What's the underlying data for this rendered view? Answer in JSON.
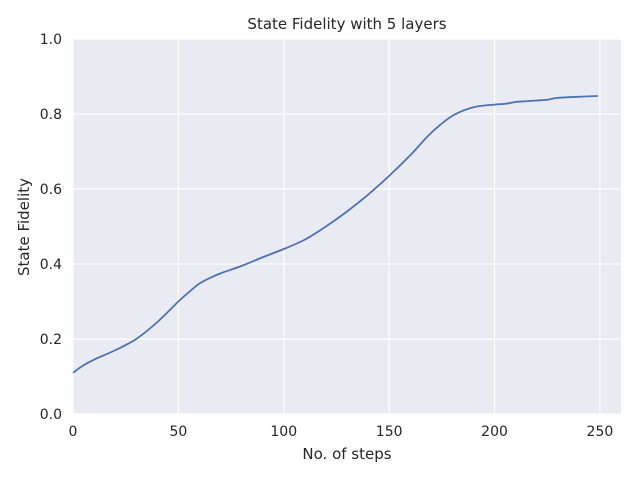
{
  "chart_data": {
    "type": "line",
    "title": "State Fidelity with 5 layers",
    "xlabel": "No. of steps",
    "ylabel": "State Fidelity",
    "xlim": [
      0,
      260
    ],
    "ylim": [
      0.0,
      1.0
    ],
    "xticks": [
      0,
      50,
      100,
      150,
      200,
      250
    ],
    "xtick_labels": [
      "0",
      "50",
      "100",
      "150",
      "200",
      "250"
    ],
    "yticks": [
      0.0,
      0.2,
      0.4,
      0.6,
      0.8,
      1.0
    ],
    "ytick_labels": [
      "0.0",
      "0.2",
      "0.4",
      "0.6",
      "0.8",
      "1.0"
    ],
    "grid": true,
    "background": "#eaeaf2",
    "line_color": "#4c72b0",
    "series": [
      {
        "x": [
          0,
          5,
          10,
          20,
          30,
          40,
          50,
          55,
          60,
          65,
          70,
          80,
          90,
          100,
          110,
          120,
          130,
          140,
          150,
          160,
          170,
          180,
          190,
          200,
          205,
          210,
          215,
          220,
          225,
          230,
          240,
          249
        ],
        "y": [
          0.11,
          0.13,
          0.145,
          0.17,
          0.2,
          0.245,
          0.3,
          0.325,
          0.348,
          0.363,
          0.375,
          0.395,
          0.418,
          0.44,
          0.465,
          0.5,
          0.54,
          0.585,
          0.635,
          0.69,
          0.75,
          0.795,
          0.818,
          0.825,
          0.827,
          0.832,
          0.834,
          0.836,
          0.838,
          0.843,
          0.846,
          0.848
        ]
      }
    ]
  }
}
